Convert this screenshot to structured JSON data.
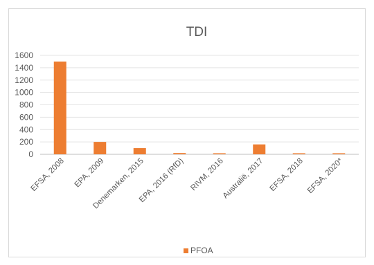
{
  "chart_data": {
    "type": "bar",
    "title": "TDI",
    "categories": [
      "EFSA, 2008",
      "EPA, 2009",
      "Denemarken, 2015",
      "EPA, 2016 (RfD)",
      "RIVM, 2016",
      "Australië, 2017",
      "EFSA, 2018",
      "EFSA, 2020*"
    ],
    "series": [
      {
        "name": "PFOA",
        "values": [
          1500,
          200,
          100,
          20,
          12.5,
          160,
          0.8,
          0.63
        ],
        "color": "#ED7D31"
      }
    ],
    "ylim": [
      0,
      1600
    ],
    "yticks": [
      0,
      200,
      400,
      600,
      800,
      1000,
      1200,
      1400,
      1600
    ],
    "grid": true,
    "legend_position": "bottom"
  }
}
